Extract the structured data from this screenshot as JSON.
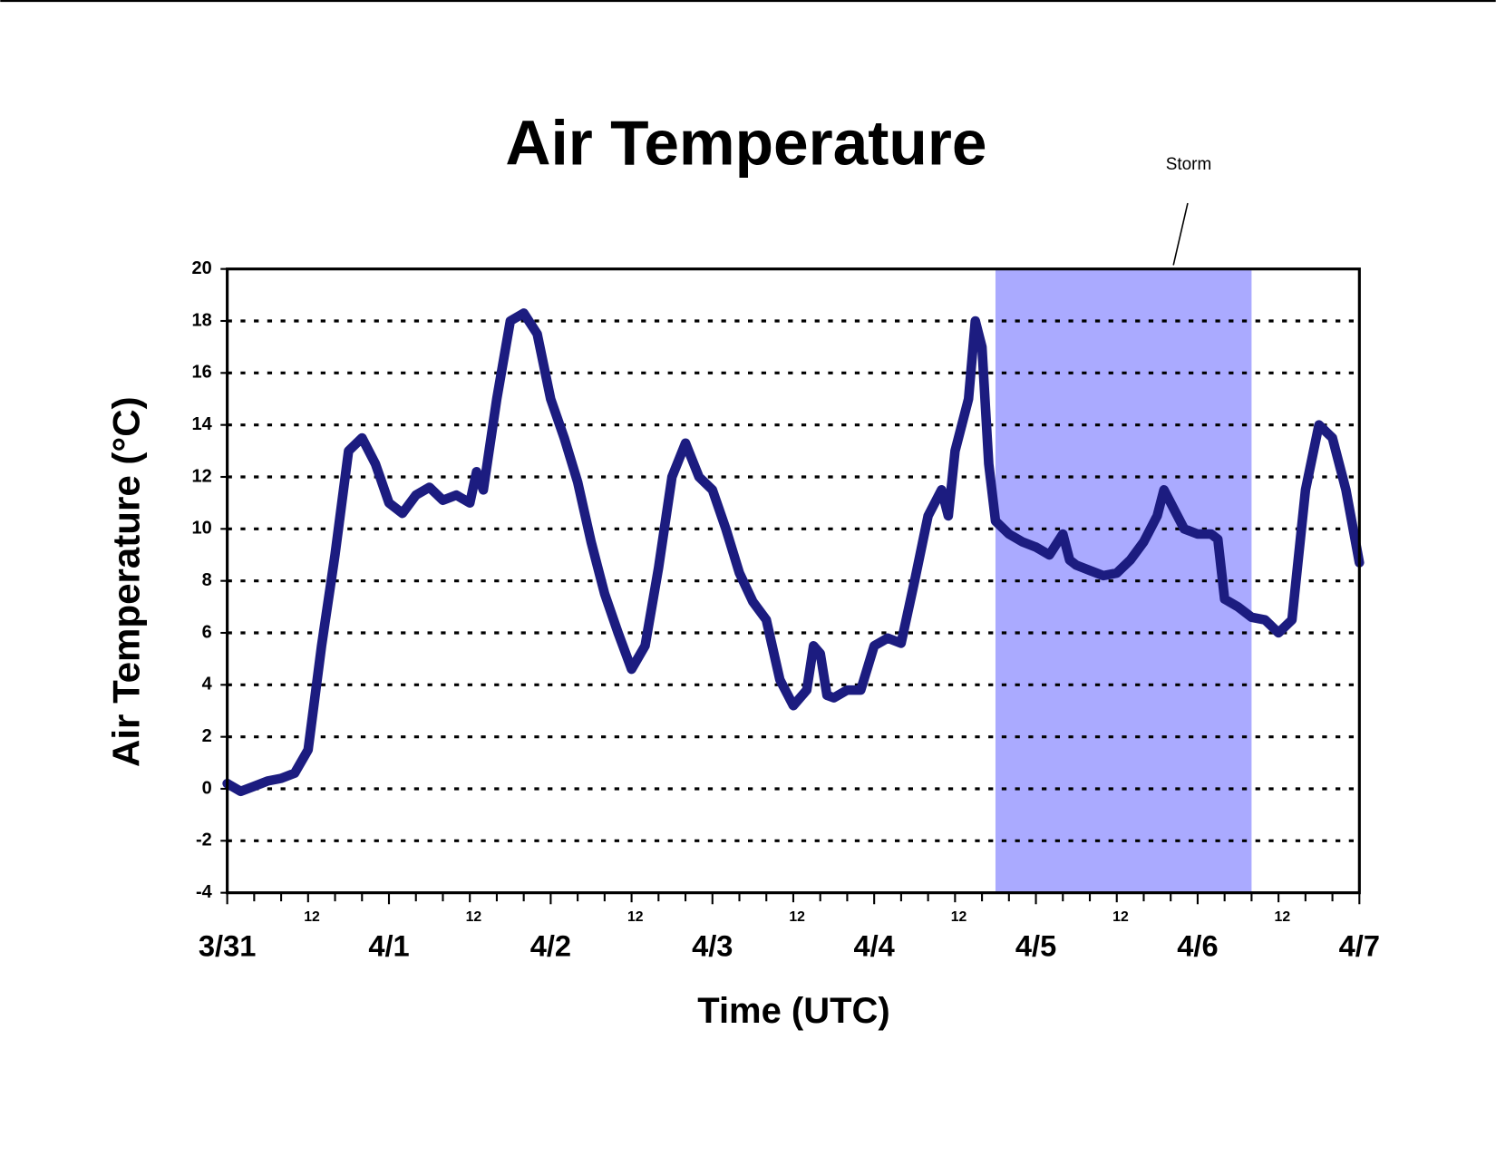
{
  "chart_data": {
    "type": "line",
    "title": "Air Temperature",
    "x_label": "Time (UTC)",
    "y_label": "Air Temperature (°C)",
    "xlim": [
      0,
      168
    ],
    "ylim": [
      -4,
      20
    ],
    "yticks": [
      -4,
      -2,
      0,
      2,
      4,
      6,
      8,
      10,
      12,
      14,
      16,
      18,
      20
    ],
    "grid": true,
    "xticks": [
      {
        "value": 0,
        "label": "3/31"
      },
      {
        "value": 24,
        "label": "4/1"
      },
      {
        "value": 48,
        "label": "4/2"
      },
      {
        "value": 72,
        "label": "4/3"
      },
      {
        "value": 96,
        "label": "4/4"
      },
      {
        "value": 120,
        "label": "4/5"
      },
      {
        "value": 144,
        "label": "4/6"
      },
      {
        "value": 168,
        "label": "4/7"
      }
    ],
    "x_hour_ticks": [
      12,
      {
        "value": 36,
        "label": "12"
      },
      {
        "value": 60,
        "label": "12"
      },
      {
        "value": 84,
        "label": "12"
      },
      {
        "value": 108,
        "label": "12"
      },
      {
        "value": 132,
        "label": "12"
      },
      {
        "value": 156,
        "label": "12"
      }
    ],
    "x_minor_ticks": [
      4,
      8,
      16,
      20,
      28,
      32,
      40,
      44,
      52,
      56,
      64,
      68,
      76,
      80,
      88,
      92,
      100,
      104,
      112,
      116,
      124,
      128,
      136,
      140,
      148,
      152,
      160,
      164
    ],
    "shaded_region": {
      "label": "Storm",
      "x0": 114,
      "x1": 152,
      "color": "#aaaaff"
    },
    "series": [
      {
        "name": "Air Temperature",
        "color": "#1c1c80",
        "x": [
          0,
          2,
          4,
          6,
          8,
          10,
          12,
          14,
          16,
          18,
          20,
          22,
          24,
          26,
          28,
          30,
          32,
          34,
          36,
          37,
          38,
          40,
          42,
          44,
          46,
          48,
          50,
          52,
          54,
          56,
          58,
          60,
          62,
          64,
          66,
          68,
          70,
          72,
          74,
          76,
          78,
          80,
          82,
          84,
          86,
          87,
          88,
          89,
          90,
          92,
          94,
          96,
          98,
          100,
          102,
          104,
          106,
          107,
          108,
          110,
          111,
          112,
          113,
          114,
          116,
          118,
          120,
          122,
          124,
          125,
          126,
          128,
          130,
          132,
          134,
          136,
          138,
          139,
          140,
          142,
          144,
          146,
          147,
          148,
          150,
          152,
          154,
          156,
          158,
          160,
          162,
          164,
          166,
          168
        ],
        "values": [
          0.2,
          -0.1,
          0.1,
          0.3,
          0.4,
          0.6,
          1.5,
          5.5,
          9,
          13,
          13.5,
          12.5,
          11,
          10.6,
          11.3,
          11.6,
          11.1,
          11.3,
          11,
          12.2,
          11.5,
          15,
          18,
          18.3,
          17.5,
          15,
          13.5,
          11.8,
          9.5,
          7.5,
          6,
          4.6,
          5.5,
          8.5,
          12,
          13.3,
          12,
          11.5,
          10,
          8.3,
          7.2,
          6.5,
          4.2,
          3.2,
          3.8,
          5.5,
          5.2,
          3.6,
          3.5,
          3.8,
          3.8,
          5.5,
          5.8,
          5.6,
          8,
          10.5,
          11.5,
          10.5,
          13,
          15,
          18,
          17,
          12.5,
          10.3,
          9.8,
          9.5,
          9.3,
          9,
          9.8,
          8.8,
          8.6,
          8.4,
          8.2,
          8.3,
          8.8,
          9.5,
          10.5,
          11.5,
          11,
          10,
          9.8,
          9.8,
          9.6,
          7.3,
          7,
          6.6,
          6.5,
          6,
          6.5,
          11.5,
          14,
          13.5,
          11.5,
          8.7
        ]
      }
    ]
  }
}
